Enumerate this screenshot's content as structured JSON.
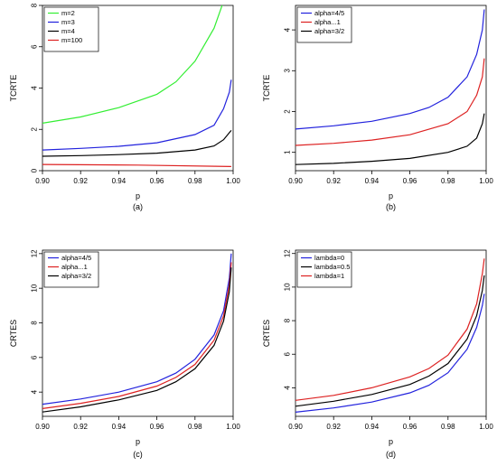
{
  "chart_data": [
    {
      "type": "line",
      "caption": "(a)",
      "xlabel": "p",
      "ylabel": "TCRTE",
      "xlim": [
        0.9,
        1.0
      ],
      "ylim": [
        0,
        8
      ],
      "xticks": [
        "0.90",
        "0.92",
        "0.94",
        "0.96",
        "0.98",
        "1.00"
      ],
      "yticks": [
        "0",
        "2",
        "4",
        "6",
        "8"
      ],
      "legend_position": "top-left",
      "series": [
        {
          "name": "m=2",
          "color": "#33ee33",
          "points": [
            [
              0.9,
              2.3
            ],
            [
              0.92,
              2.6
            ],
            [
              0.94,
              3.05
            ],
            [
              0.96,
              3.7
            ],
            [
              0.97,
              4.3
            ],
            [
              0.98,
              5.3
            ],
            [
              0.99,
              6.9
            ],
            [
              0.995,
              8.2
            ]
          ]
        },
        {
          "name": "m=3",
          "color": "#2222dd",
          "points": [
            [
              0.9,
              1.0
            ],
            [
              0.92,
              1.08
            ],
            [
              0.94,
              1.18
            ],
            [
              0.96,
              1.35
            ],
            [
              0.98,
              1.75
            ],
            [
              0.99,
              2.2
            ],
            [
              0.995,
              3.0
            ],
            [
              0.998,
              3.8
            ],
            [
              0.999,
              4.4
            ]
          ]
        },
        {
          "name": "m=4",
          "color": "#000000",
          "points": [
            [
              0.9,
              0.7
            ],
            [
              0.92,
              0.73
            ],
            [
              0.94,
              0.78
            ],
            [
              0.96,
              0.85
            ],
            [
              0.98,
              1.0
            ],
            [
              0.99,
              1.2
            ],
            [
              0.995,
              1.5
            ],
            [
              0.999,
              1.95
            ]
          ]
        },
        {
          "name": "m=100",
          "color": "#dd2222",
          "points": [
            [
              0.9,
              0.3
            ],
            [
              0.95,
              0.27
            ],
            [
              0.999,
              0.2
            ]
          ]
        }
      ]
    },
    {
      "type": "line",
      "caption": "(b)",
      "xlabel": "p",
      "ylabel": "TCRTE",
      "xlim": [
        0.9,
        1.0
      ],
      "ylim": [
        0.55,
        4.6
      ],
      "xticks": [
        "0.90",
        "0.92",
        "0.94",
        "0.96",
        "0.98",
        "1.00"
      ],
      "yticks": [
        "1",
        "2",
        "3",
        "4"
      ],
      "legend_position": "top-left",
      "series": [
        {
          "name": "alpha=4/5",
          "color": "#2222dd",
          "points": [
            [
              0.9,
              1.57
            ],
            [
              0.92,
              1.65
            ],
            [
              0.94,
              1.76
            ],
            [
              0.96,
              1.95
            ],
            [
              0.97,
              2.1
            ],
            [
              0.98,
              2.35
            ],
            [
              0.99,
              2.85
            ],
            [
              0.995,
              3.4
            ],
            [
              0.998,
              4.0
            ],
            [
              0.999,
              4.5
            ]
          ]
        },
        {
          "name": "alpha...1",
          "color": "#dd2222",
          "points": [
            [
              0.9,
              1.17
            ],
            [
              0.92,
              1.22
            ],
            [
              0.94,
              1.3
            ],
            [
              0.96,
              1.43
            ],
            [
              0.98,
              1.7
            ],
            [
              0.99,
              2.0
            ],
            [
              0.995,
              2.4
            ],
            [
              0.998,
              2.85
            ],
            [
              0.999,
              3.3
            ]
          ]
        },
        {
          "name": "alpha=3/2",
          "color": "#000000",
          "points": [
            [
              0.9,
              0.7
            ],
            [
              0.92,
              0.73
            ],
            [
              0.94,
              0.78
            ],
            [
              0.96,
              0.85
            ],
            [
              0.98,
              1.0
            ],
            [
              0.99,
              1.15
            ],
            [
              0.995,
              1.35
            ],
            [
              0.998,
              1.7
            ],
            [
              0.999,
              1.95
            ]
          ]
        }
      ]
    },
    {
      "type": "line",
      "caption": "(c)",
      "xlabel": "p",
      "ylabel": "CRTES",
      "xlim": [
        0.9,
        1.0
      ],
      "ylim": [
        2.6,
        12.2
      ],
      "xticks": [
        "0.90",
        "0.92",
        "0.94",
        "0.96",
        "0.98",
        "1.00"
      ],
      "yticks": [
        "4",
        "6",
        "8",
        "10",
        "12"
      ],
      "legend_position": "top-left",
      "series": [
        {
          "name": "alpha=4/5",
          "color": "#2222dd",
          "points": [
            [
              0.9,
              3.3
            ],
            [
              0.92,
              3.6
            ],
            [
              0.94,
              4.0
            ],
            [
              0.96,
              4.6
            ],
            [
              0.97,
              5.1
            ],
            [
              0.98,
              5.9
            ],
            [
              0.99,
              7.3
            ],
            [
              0.995,
              8.7
            ],
            [
              0.998,
              10.6
            ],
            [
              0.999,
              12.0
            ]
          ]
        },
        {
          "name": "alpha...1",
          "color": "#dd2222",
          "points": [
            [
              0.9,
              3.05
            ],
            [
              0.92,
              3.35
            ],
            [
              0.94,
              3.75
            ],
            [
              0.96,
              4.35
            ],
            [
              0.97,
              4.85
            ],
            [
              0.98,
              5.6
            ],
            [
              0.99,
              7.0
            ],
            [
              0.995,
              8.4
            ],
            [
              0.998,
              10.2
            ],
            [
              0.999,
              11.5
            ]
          ]
        },
        {
          "name": "alpha=3/2",
          "color": "#000000",
          "points": [
            [
              0.9,
              2.85
            ],
            [
              0.92,
              3.15
            ],
            [
              0.94,
              3.55
            ],
            [
              0.96,
              4.1
            ],
            [
              0.97,
              4.6
            ],
            [
              0.98,
              5.35
            ],
            [
              0.99,
              6.7
            ],
            [
              0.995,
              8.1
            ],
            [
              0.998,
              9.8
            ],
            [
              0.999,
              11.2
            ]
          ]
        }
      ]
    },
    {
      "type": "line",
      "caption": "(d)",
      "xlabel": "p",
      "ylabel": "CRTES",
      "xlim": [
        0.9,
        1.0
      ],
      "ylim": [
        2.3,
        12.2
      ],
      "xticks": [
        "0.90",
        "0.92",
        "0.94",
        "0.96",
        "0.98",
        "1.00"
      ],
      "yticks": [
        "4",
        "6",
        "8",
        "10",
        "12"
      ],
      "legend_position": "top-left",
      "series": [
        {
          "name": "lambda=0",
          "color": "#2222dd",
          "points": [
            [
              0.9,
              2.55
            ],
            [
              0.92,
              2.8
            ],
            [
              0.94,
              3.15
            ],
            [
              0.96,
              3.7
            ],
            [
              0.97,
              4.15
            ],
            [
              0.98,
              4.9
            ],
            [
              0.99,
              6.3
            ],
            [
              0.995,
              7.6
            ],
            [
              0.998,
              8.9
            ],
            [
              0.999,
              9.6
            ]
          ]
        },
        {
          "name": "lambda=0.5",
          "color": "#000000",
          "points": [
            [
              0.9,
              2.9
            ],
            [
              0.92,
              3.2
            ],
            [
              0.94,
              3.6
            ],
            [
              0.96,
              4.2
            ],
            [
              0.97,
              4.7
            ],
            [
              0.98,
              5.45
            ],
            [
              0.99,
              6.9
            ],
            [
              0.995,
              8.3
            ],
            [
              0.998,
              9.8
            ],
            [
              0.999,
              10.7
            ]
          ]
        },
        {
          "name": "lambda=1",
          "color": "#dd2222",
          "points": [
            [
              0.9,
              3.25
            ],
            [
              0.92,
              3.55
            ],
            [
              0.94,
              4.0
            ],
            [
              0.96,
              4.65
            ],
            [
              0.97,
              5.15
            ],
            [
              0.98,
              5.95
            ],
            [
              0.99,
              7.5
            ],
            [
              0.995,
              9.0
            ],
            [
              0.998,
              10.8
            ],
            [
              0.999,
              11.7
            ]
          ]
        }
      ]
    }
  ]
}
